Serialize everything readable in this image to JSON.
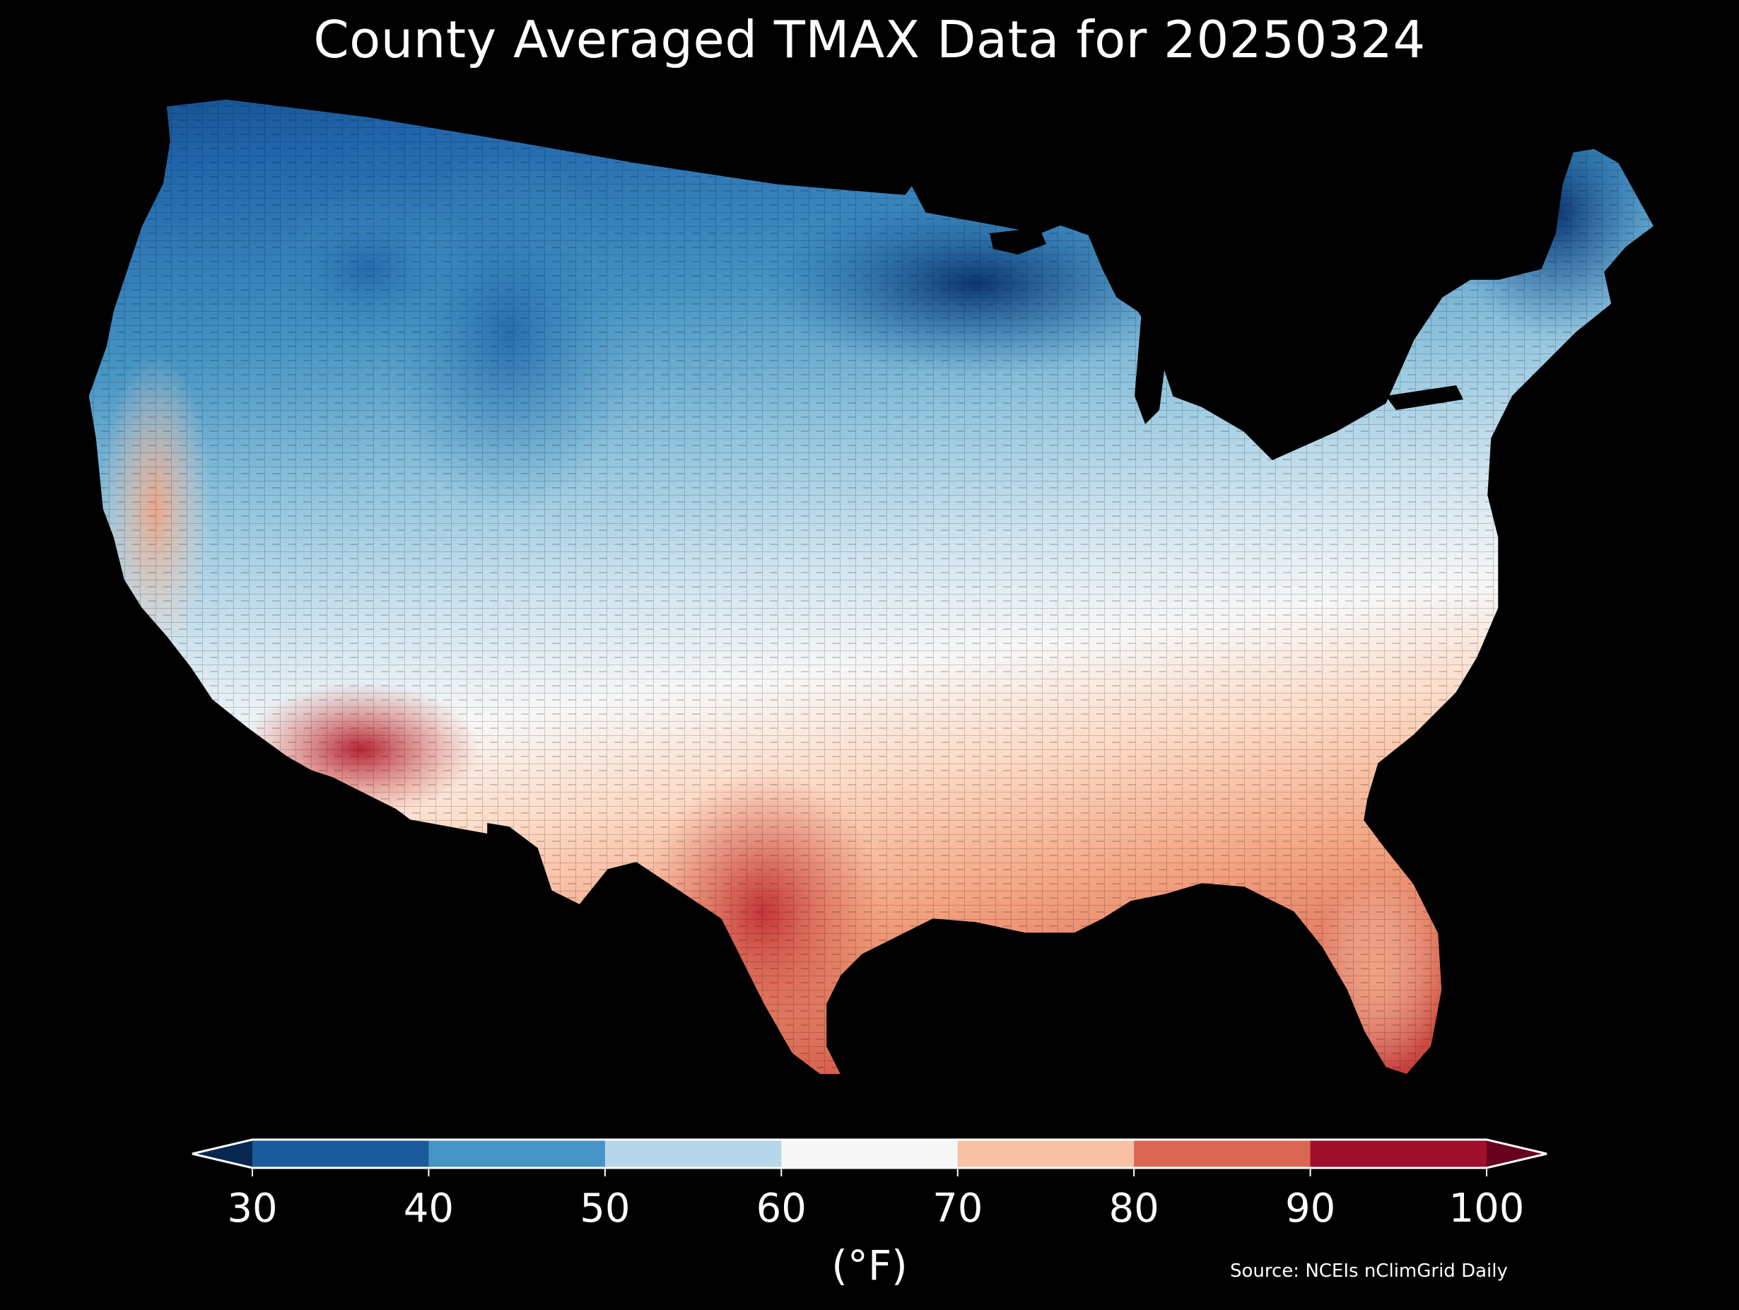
{
  "title": "County Averaged TMAX Data for 20250324",
  "source": "Source: NCEIs nClimGrid Daily",
  "colorbar": {
    "unit_label": "(°F)",
    "ticks": [
      "30",
      "40",
      "50",
      "60",
      "70",
      "80",
      "90",
      "100"
    ],
    "extend": "both",
    "under_color": "#08274f",
    "over_color": "#67001f",
    "bins": [
      {
        "from": 30,
        "to": 40,
        "color": "#1b5b9c"
      },
      {
        "from": 40,
        "to": 50,
        "color": "#4794c7"
      },
      {
        "from": 50,
        "to": 60,
        "color": "#b6d7e9"
      },
      {
        "from": 60,
        "to": 70,
        "color": "#f7f7f7"
      },
      {
        "from": 70,
        "to": 80,
        "color": "#f8c1a6"
      },
      {
        "from": 80,
        "to": 90,
        "color": "#da6753"
      },
      {
        "from": 90,
        "to": 100,
        "color": "#9d0f2a"
      }
    ]
  },
  "map": {
    "region": "Contiguous United States",
    "features": "county boundaries",
    "variable": "TMAX",
    "gradient_colors": [
      "#08306b",
      "#2166ac",
      "#4393c3",
      "#92c5de",
      "#d1e5f0",
      "#f7f7f7",
      "#fddbc7",
      "#f4a582",
      "#d6604d",
      "#b2182b"
    ]
  }
}
